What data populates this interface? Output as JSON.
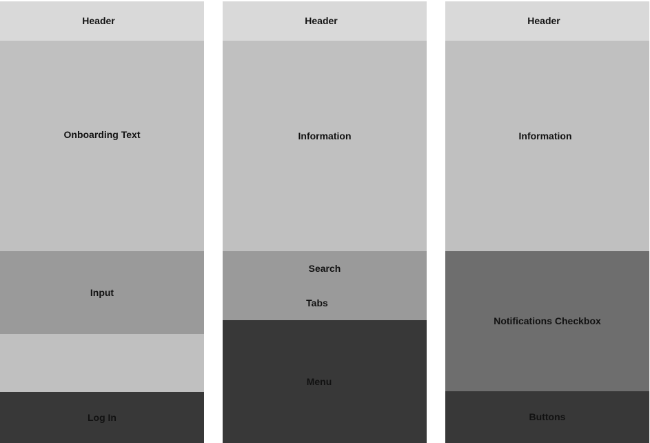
{
  "colors": {
    "header": "#d9d9d9",
    "content": "#c0c0c0",
    "mid": "#9a9a9a",
    "dark_mid": "#6e6e6e",
    "dark": "#383838"
  },
  "screens": [
    {
      "header": "Header",
      "content": "Onboarding Text",
      "input": "Input",
      "action": "Log In"
    },
    {
      "header": "Header",
      "content": "Information",
      "search": "Search",
      "tabs": "Tabs",
      "menu": "Menu"
    },
    {
      "header": "Header",
      "content": "Information",
      "notifications": "Notifications Checkbox",
      "buttons": "Buttons"
    }
  ]
}
